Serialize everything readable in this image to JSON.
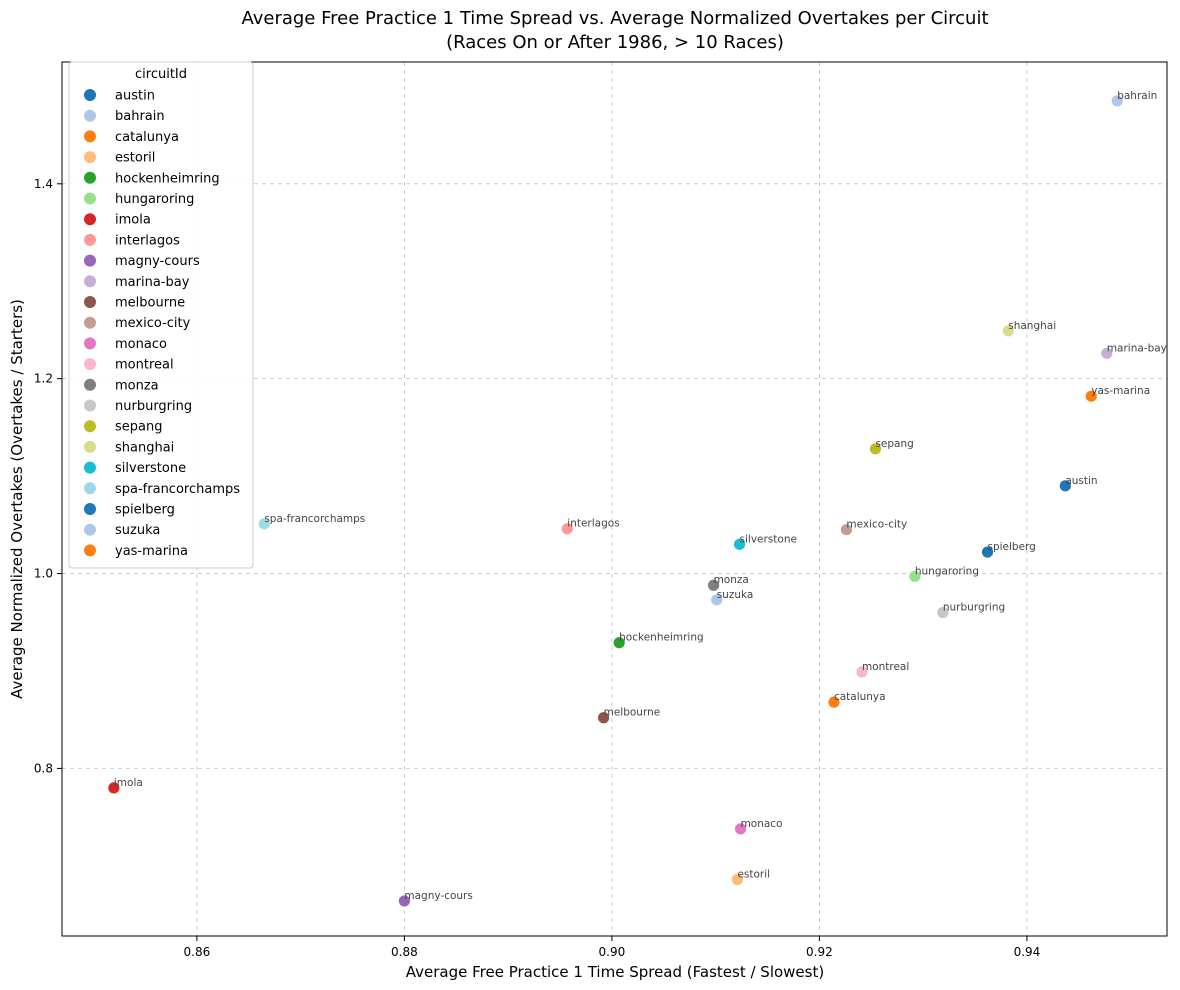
{
  "chart_data": {
    "type": "scatter",
    "title": "Average Free Practice 1 Time Spread vs. Average Normalized Overtakes per Circuit",
    "subtitle": "(Races On or After 1986, > 10 Races)",
    "xlabel": "Average Free Practice 1 Time Spread (Fastest / Slowest)",
    "ylabel": "Average Normalized Overtakes (Overtakes / Starters)",
    "xlim": [
      0.847,
      0.9535
    ],
    "ylim": [
      0.628,
      1.525
    ],
    "xticks": [
      0.86,
      0.88,
      0.9,
      0.92,
      0.94
    ],
    "xtick_labels": [
      "0.86",
      "0.88",
      "0.90",
      "0.92",
      "0.94"
    ],
    "yticks": [
      0.8,
      1.0,
      1.2,
      1.4
    ],
    "ytick_labels": [
      "0.8",
      "1.0",
      "1.2",
      "1.4"
    ],
    "grid": true,
    "legend": {
      "title": "circuitId",
      "placement": "top-left"
    },
    "points": [
      {
        "name": "austin",
        "x": 0.9437,
        "y": 1.09,
        "color": "#1f77b4"
      },
      {
        "name": "bahrain",
        "x": 0.9487,
        "y": 1.485,
        "color": "#aec7e8"
      },
      {
        "name": "catalunya",
        "x": 0.9214,
        "y": 0.868,
        "color": "#ff7f0e"
      },
      {
        "name": "estoril",
        "x": 0.9121,
        "y": 0.686,
        "color": "#ffbb78"
      },
      {
        "name": "hockenheimring",
        "x": 0.9007,
        "y": 0.929,
        "color": "#2ca02c"
      },
      {
        "name": "hungaroring",
        "x": 0.9292,
        "y": 0.997,
        "color": "#98df8a"
      },
      {
        "name": "imola",
        "x": 0.852,
        "y": 0.78,
        "color": "#d62728"
      },
      {
        "name": "interlagos",
        "x": 0.8957,
        "y": 1.046,
        "color": "#ff9896"
      },
      {
        "name": "magny-cours",
        "x": 0.88,
        "y": 0.664,
        "color": "#9467bd"
      },
      {
        "name": "marina-bay",
        "x": 0.9477,
        "y": 1.226,
        "color": "#c5b0d5"
      },
      {
        "name": "melbourne",
        "x": 0.8992,
        "y": 0.852,
        "color": "#8c564b"
      },
      {
        "name": "mexico-city",
        "x": 0.9226,
        "y": 1.045,
        "color": "#c49c94"
      },
      {
        "name": "monaco",
        "x": 0.9124,
        "y": 0.738,
        "color": "#e377c2"
      },
      {
        "name": "montreal",
        "x": 0.9241,
        "y": 0.899,
        "color": "#f7b6d2"
      },
      {
        "name": "monza",
        "x": 0.9098,
        "y": 0.988,
        "color": "#7f7f7f"
      },
      {
        "name": "nurburgring",
        "x": 0.9319,
        "y": 0.96,
        "color": "#c7c7c7"
      },
      {
        "name": "sepang",
        "x": 0.9254,
        "y": 1.128,
        "color": "#bcbd22"
      },
      {
        "name": "shanghai",
        "x": 0.9382,
        "y": 1.249,
        "color": "#dbdb8d"
      },
      {
        "name": "silverstone",
        "x": 0.9123,
        "y": 1.03,
        "color": "#17becf"
      },
      {
        "name": "spa-francorchamps",
        "x": 0.8665,
        "y": 1.051,
        "color": "#9edae5"
      },
      {
        "name": "spielberg",
        "x": 0.9362,
        "y": 1.022,
        "color": "#1f77b4"
      },
      {
        "name": "suzuka",
        "x": 0.9101,
        "y": 0.973,
        "color": "#aec7e8"
      },
      {
        "name": "yas-marina",
        "x": 0.9462,
        "y": 1.182,
        "color": "#ff7f0e"
      }
    ]
  }
}
